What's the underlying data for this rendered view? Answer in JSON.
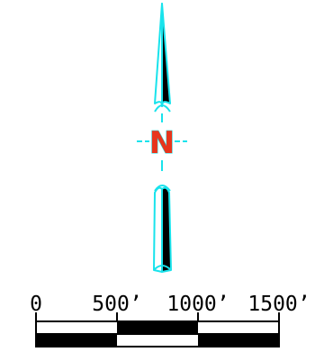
{
  "colors": {
    "arrow_outline": "#19e3ec",
    "arrow_fill": "#000000",
    "north_letter": "#e8341c",
    "scale_bar": "#000000",
    "background": "#ffffff"
  },
  "north_arrow": {
    "icon": "north-arrow-icon",
    "letter": "N"
  },
  "scale_bar": {
    "unit_mark": "’",
    "labels": [
      "0",
      "500’",
      "1000’",
      "1500’"
    ],
    "divisions": [
      0,
      500,
      1000,
      1500
    ]
  }
}
